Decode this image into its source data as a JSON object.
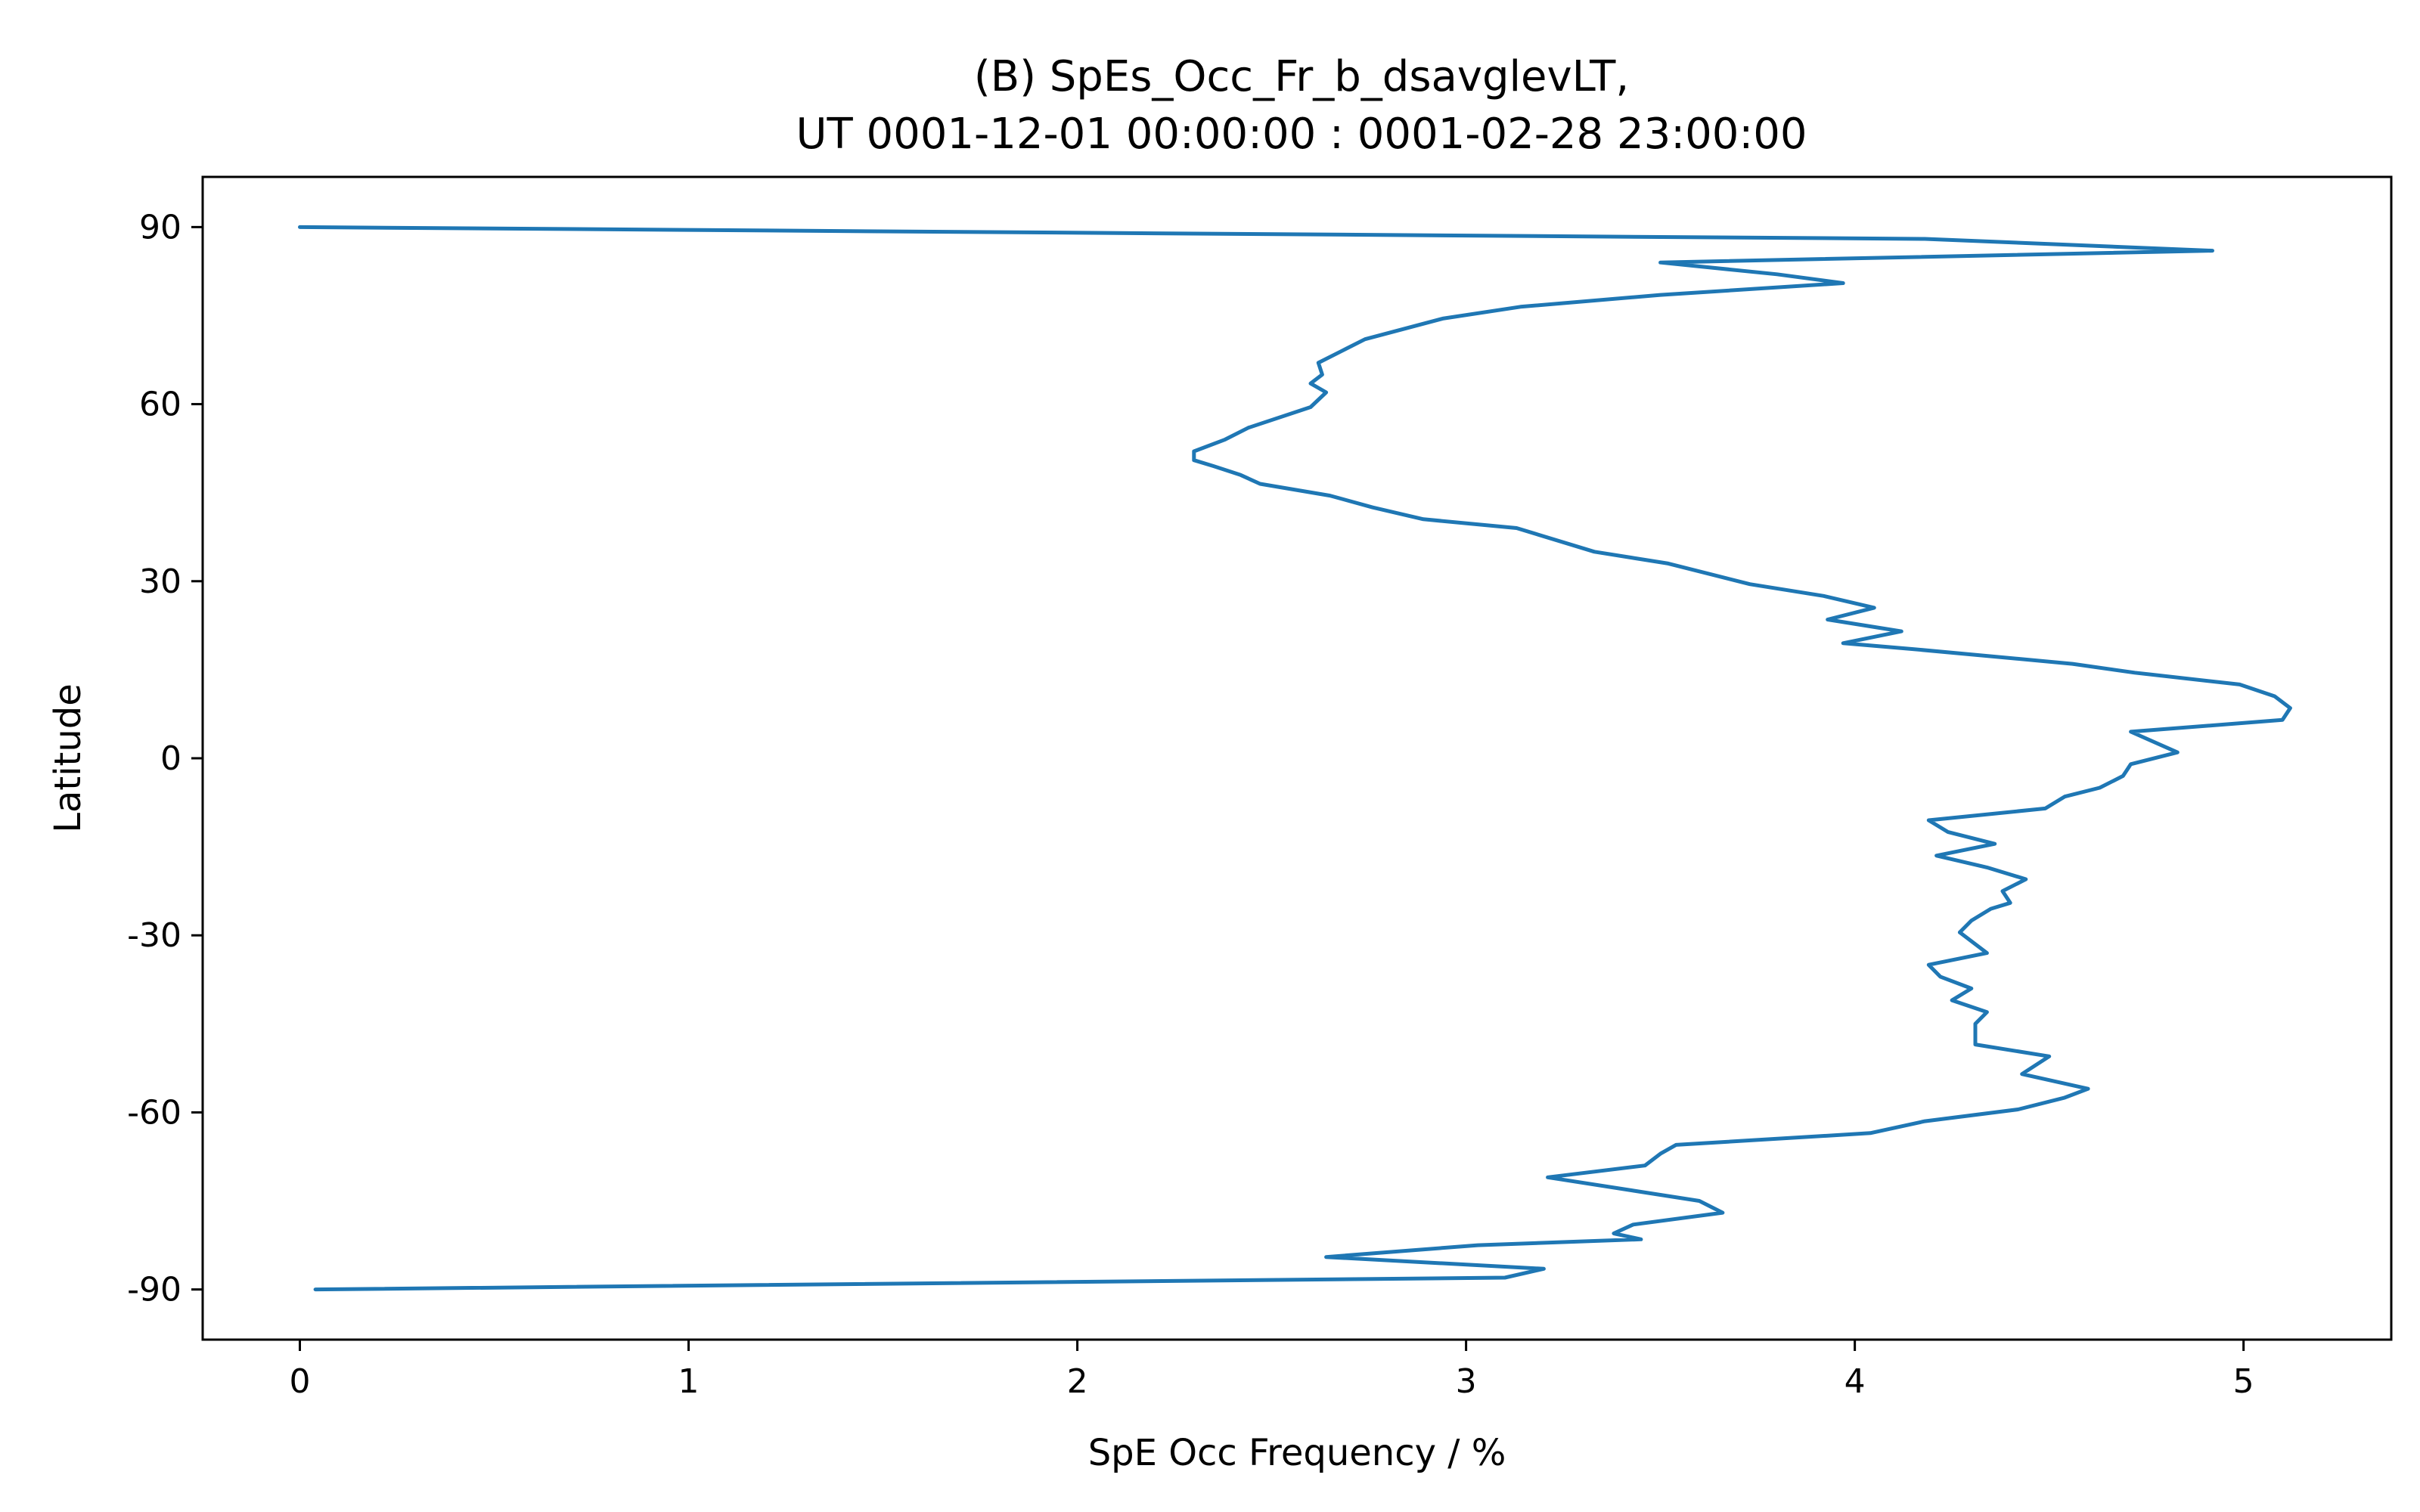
{
  "chart_data": {
    "type": "line",
    "title": "(B) SpEs_Occ_Fr_b_dsavglevLT,",
    "subtitle": "UT 0001-12-01 00:00:00 : 0001-02-28 23:00:00",
    "xlabel": "SpE Occ Frequency / %",
    "ylabel": "Latitude",
    "xlim": [
      -0.25,
      5.38
    ],
    "ylim": [
      -98.5,
      98.5
    ],
    "xticks": [
      0,
      1,
      2,
      3,
      4,
      5
    ],
    "xtick_labels": [
      "0",
      "1",
      "2",
      "3",
      "4",
      "5"
    ],
    "yticks": [
      -90,
      -60,
      -30,
      0,
      30,
      60,
      90
    ],
    "ytick_labels": [
      "-90",
      "-60",
      "-30",
      "0",
      "30",
      "60",
      "90"
    ],
    "grid": false,
    "series": [
      {
        "color": "#1f77b4",
        "x": [
          0.0,
          4.18,
          4.92,
          3.5,
          3.8,
          3.97,
          3.5,
          3.14,
          2.94,
          2.74,
          2.68,
          2.62,
          2.63,
          2.6,
          2.64,
          2.6,
          2.44,
          2.38,
          2.3,
          2.3,
          2.35,
          2.42,
          2.47,
          2.65,
          2.76,
          2.89,
          3.13,
          3.33,
          3.52,
          3.73,
          3.92,
          4.05,
          3.93,
          4.12,
          3.97,
          4.15,
          4.56,
          4.72,
          4.99,
          5.08,
          5.12,
          5.1,
          4.71,
          4.83,
          4.71,
          4.69,
          4.63,
          4.54,
          4.49,
          4.19,
          4.24,
          4.36,
          4.21,
          4.34,
          4.44,
          4.38,
          4.4,
          4.35,
          4.3,
          4.27,
          4.34,
          4.19,
          4.22,
          4.3,
          4.25,
          4.34,
          4.31,
          4.31,
          4.5,
          4.43,
          4.6,
          4.54,
          4.42,
          4.18,
          4.04,
          3.54,
          3.5,
          3.46,
          3.21,
          3.6,
          3.66,
          3.43,
          3.38,
          3.45,
          3.03,
          2.64,
          3.2,
          3.1,
          0.04
        ],
        "y": [
          90.0,
          88.0,
          86.0,
          84.0,
          82.0,
          80.5,
          78.5,
          76.5,
          74.5,
          71.0,
          69.0,
          67.0,
          65.0,
          63.5,
          62.0,
          59.5,
          56.0,
          54.0,
          52.0,
          50.5,
          49.5,
          48.0,
          46.5,
          44.5,
          42.5,
          40.5,
          39.0,
          35.0,
          33.0,
          29.5,
          27.5,
          25.5,
          23.5,
          21.5,
          19.5,
          18.5,
          16.0,
          14.5,
          12.5,
          10.5,
          8.5,
          6.5,
          4.5,
          1.0,
          -1.0,
          -3.0,
          -5.0,
          -6.5,
          -8.5,
          -10.5,
          -12.5,
          -14.5,
          -16.5,
          -18.5,
          -20.5,
          -22.5,
          -24.5,
          -25.5,
          -27.5,
          -29.5,
          -33.0,
          -35.0,
          -37.0,
          -39.0,
          -41.0,
          -43.0,
          -45.0,
          -48.5,
          -50.5,
          -53.5,
          -56.0,
          -57.5,
          -59.5,
          -61.5,
          -63.5,
          -65.5,
          -67.0,
          -69.0,
          -71.0,
          -75.0,
          -77.0,
          -79.0,
          -80.5,
          -81.5,
          -82.5,
          -84.5,
          -86.5,
          -88.0,
          -90.0
        ]
      }
    ]
  }
}
